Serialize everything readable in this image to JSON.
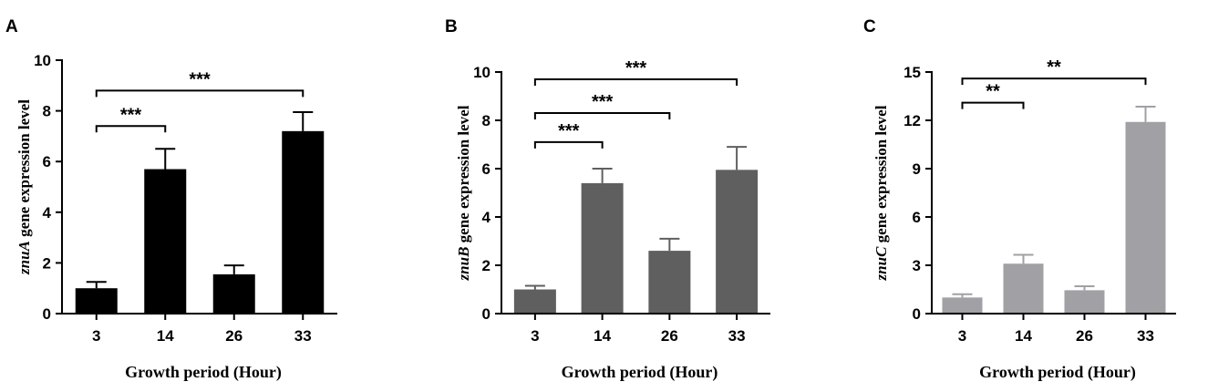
{
  "chart_data": [
    {
      "panel": "A",
      "type": "bar",
      "gene": "znuA",
      "ylabel_suffix": " gene expression level",
      "xlabel": "Growth period (Hour)",
      "categories": [
        "3",
        "14",
        "26",
        "33"
      ],
      "values": [
        1.0,
        5.7,
        1.55,
        7.2
      ],
      "errors": [
        0.25,
        0.8,
        0.35,
        0.75
      ],
      "ylim": [
        0,
        10
      ],
      "yticks": [
        0,
        2,
        4,
        6,
        8,
        10
      ],
      "color": "#000000",
      "significance": [
        {
          "from": 0,
          "to": 1,
          "y": 7.4,
          "label": "***"
        },
        {
          "from": 0,
          "to": 3,
          "y": 8.8,
          "label": "***"
        }
      ]
    },
    {
      "panel": "B",
      "type": "bar",
      "gene": "znuB",
      "ylabel_suffix": " gene expression level",
      "xlabel": "Growth period (Hour)",
      "categories": [
        "3",
        "14",
        "26",
        "33"
      ],
      "values": [
        1.0,
        5.4,
        2.6,
        5.95
      ],
      "errors": [
        0.15,
        0.6,
        0.5,
        0.95
      ],
      "ylim": [
        0,
        10
      ],
      "yticks": [
        0,
        2,
        4,
        6,
        8,
        10
      ],
      "color": "#5f5f5f",
      "significance": [
        {
          "from": 0,
          "to": 1,
          "y": 7.1,
          "label": "***"
        },
        {
          "from": 0,
          "to": 2,
          "y": 8.3,
          "label": "***"
        },
        {
          "from": 0,
          "to": 3,
          "y": 9.7,
          "label": "***"
        }
      ]
    },
    {
      "panel": "C",
      "type": "bar",
      "gene": "znuC",
      "ylabel_suffix": " gene expression level",
      "xlabel": "Growth period (Hour)",
      "categories": [
        "3",
        "14",
        "26",
        "33"
      ],
      "values": [
        1.0,
        3.1,
        1.45,
        11.9
      ],
      "errors": [
        0.2,
        0.55,
        0.25,
        0.95
      ],
      "ylim": [
        0,
        15
      ],
      "yticks": [
        0,
        3,
        6,
        9,
        12,
        15
      ],
      "color": "#a0a0a5",
      "significance": [
        {
          "from": 0,
          "to": 1,
          "y": 13.1,
          "label": "**"
        },
        {
          "from": 0,
          "to": 3,
          "y": 14.6,
          "label": "**"
        }
      ]
    }
  ]
}
